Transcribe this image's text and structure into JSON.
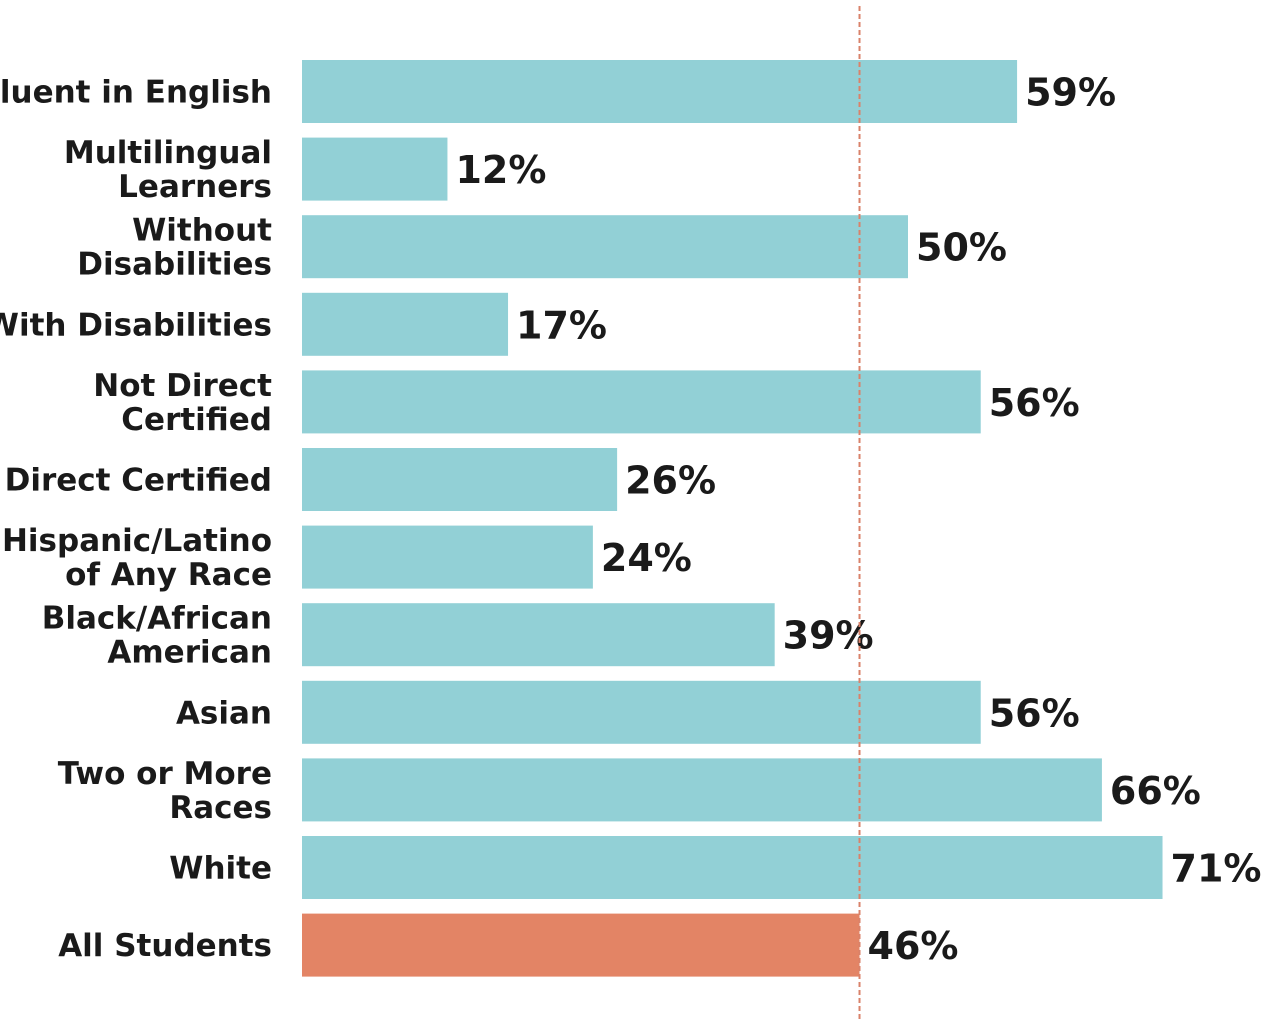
{
  "chart_data": {
    "type": "bar",
    "orientation": "horizontal",
    "categories": [
      [
        "Fluent in English"
      ],
      [
        "Multilingual",
        "Learners"
      ],
      [
        "Without",
        "Disabilities"
      ],
      [
        "With Disabilities"
      ],
      [
        "Not Direct",
        "Certified"
      ],
      [
        "Direct Certified"
      ],
      [
        "Hispanic/Latino",
        "of Any Race"
      ],
      [
        "Black/African",
        "American"
      ],
      [
        "Asian"
      ],
      [
        "Two or More",
        "Races"
      ],
      [
        "White"
      ],
      [
        "All Students"
      ]
    ],
    "values": [
      59,
      12,
      50,
      17,
      56,
      26,
      24,
      39,
      56,
      66,
      71,
      46
    ],
    "value_labels": [
      "59%",
      "12%",
      "50%",
      "17%",
      "56%",
      "26%",
      "24%",
      "39%",
      "56%",
      "66%",
      "71%",
      "46%"
    ],
    "highlight_index": 11,
    "reference_line": 46,
    "xlim": [
      0,
      100
    ],
    "colors": {
      "bar": "#92d0d6",
      "highlight": "#e38465",
      "reference_line": "#d9826a"
    }
  }
}
